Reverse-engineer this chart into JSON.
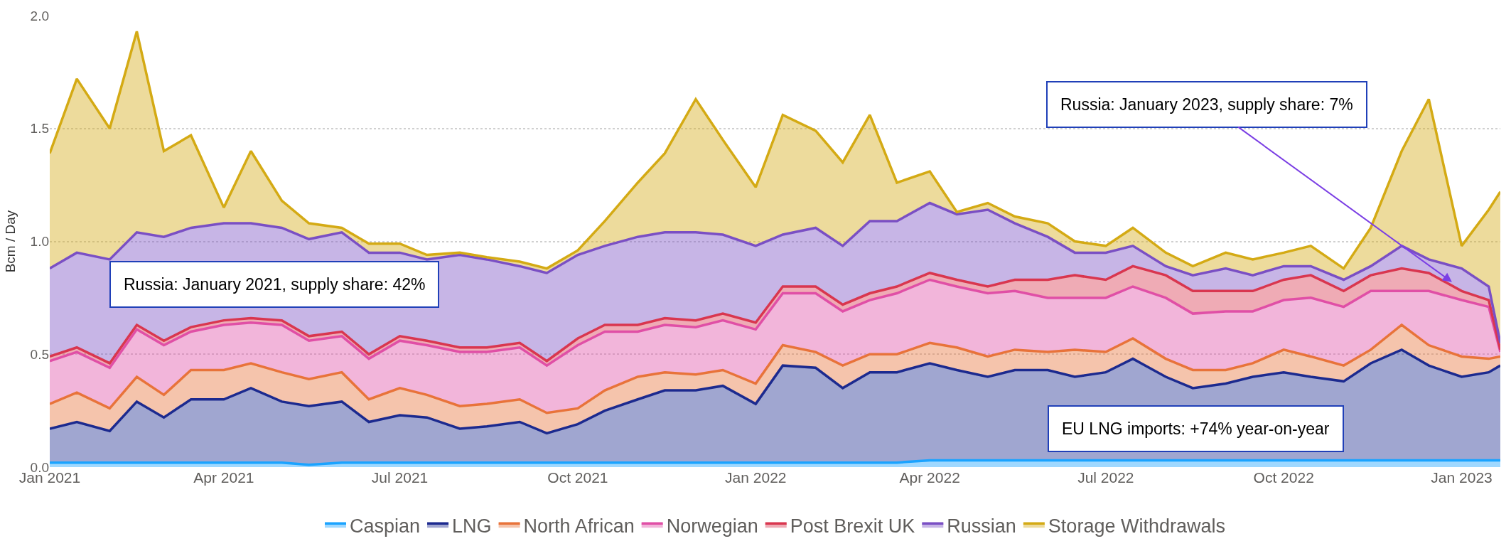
{
  "chart_data": {
    "type": "area",
    "stacked": true,
    "ylabel": "Bcm / Day",
    "x": [
      "2021-01-01",
      "2021-01-15",
      "2021-02-01",
      "2021-02-15",
      "2021-03-01",
      "2021-03-15",
      "2021-04-01",
      "2021-04-15",
      "2021-05-01",
      "2021-05-15",
      "2021-06-01",
      "2021-06-15",
      "2021-07-01",
      "2021-07-15",
      "2021-08-01",
      "2021-08-15",
      "2021-09-01",
      "2021-09-15",
      "2021-10-01",
      "2021-10-15",
      "2021-11-01",
      "2021-11-15",
      "2021-12-01",
      "2021-12-15",
      "2022-01-01",
      "2022-01-15",
      "2022-02-01",
      "2022-02-15",
      "2022-03-01",
      "2022-03-15",
      "2022-04-01",
      "2022-04-15",
      "2022-05-01",
      "2022-05-15",
      "2022-06-01",
      "2022-06-15",
      "2022-07-01",
      "2022-07-15",
      "2022-08-01",
      "2022-08-15",
      "2022-09-01",
      "2022-09-15",
      "2022-10-01",
      "2022-10-15",
      "2022-11-01",
      "2022-11-15",
      "2022-12-01",
      "2022-12-15",
      "2023-01-01",
      "2023-01-15",
      "2023-01-21"
    ],
    "series": [
      {
        "name": "Caspian",
        "color": "#1aa3ff",
        "values": [
          0.02,
          0.02,
          0.02,
          0.02,
          0.02,
          0.02,
          0.02,
          0.02,
          0.02,
          0.01,
          0.02,
          0.02,
          0.02,
          0.02,
          0.02,
          0.02,
          0.02,
          0.02,
          0.02,
          0.02,
          0.02,
          0.02,
          0.02,
          0.02,
          0.02,
          0.02,
          0.02,
          0.02,
          0.02,
          0.02,
          0.03,
          0.03,
          0.03,
          0.03,
          0.03,
          0.03,
          0.03,
          0.03,
          0.03,
          0.03,
          0.03,
          0.03,
          0.03,
          0.03,
          0.03,
          0.03,
          0.03,
          0.03,
          0.03,
          0.03,
          0.03
        ]
      },
      {
        "name": "LNG",
        "color": "#1c2a8f",
        "values": [
          0.15,
          0.18,
          0.14,
          0.27,
          0.2,
          0.28,
          0.28,
          0.33,
          0.27,
          0.26,
          0.27,
          0.18,
          0.21,
          0.2,
          0.15,
          0.16,
          0.18,
          0.13,
          0.17,
          0.23,
          0.28,
          0.32,
          0.32,
          0.34,
          0.26,
          0.43,
          0.42,
          0.33,
          0.4,
          0.4,
          0.43,
          0.4,
          0.37,
          0.4,
          0.4,
          0.37,
          0.39,
          0.45,
          0.37,
          0.32,
          0.34,
          0.37,
          0.39,
          0.37,
          0.35,
          0.43,
          0.49,
          0.42,
          0.37,
          0.39,
          0.42
        ]
      },
      {
        "name": "North African",
        "color": "#e8733a",
        "values": [
          0.11,
          0.13,
          0.1,
          0.11,
          0.1,
          0.13,
          0.13,
          0.11,
          0.13,
          0.12,
          0.13,
          0.1,
          0.12,
          0.1,
          0.1,
          0.1,
          0.1,
          0.09,
          0.07,
          0.09,
          0.1,
          0.08,
          0.07,
          0.07,
          0.09,
          0.09,
          0.07,
          0.1,
          0.08,
          0.08,
          0.09,
          0.1,
          0.09,
          0.09,
          0.08,
          0.12,
          0.09,
          0.09,
          0.08,
          0.08,
          0.06,
          0.06,
          0.1,
          0.09,
          0.07,
          0.06,
          0.11,
          0.09,
          0.09,
          0.06,
          0.04
        ]
      },
      {
        "name": "Norwegian",
        "color": "#e04fa6",
        "values": [
          0.19,
          0.18,
          0.18,
          0.21,
          0.22,
          0.17,
          0.2,
          0.18,
          0.21,
          0.17,
          0.16,
          0.18,
          0.21,
          0.22,
          0.24,
          0.23,
          0.23,
          0.21,
          0.28,
          0.26,
          0.2,
          0.21,
          0.21,
          0.22,
          0.24,
          0.23,
          0.26,
          0.24,
          0.24,
          0.27,
          0.28,
          0.27,
          0.28,
          0.26,
          0.24,
          0.23,
          0.24,
          0.23,
          0.27,
          0.25,
          0.26,
          0.23,
          0.22,
          0.26,
          0.26,
          0.26,
          0.15,
          0.24,
          0.25,
          0.23,
          0.02
        ]
      },
      {
        "name": "Post Brexit UK",
        "color": "#d9364f",
        "values": [
          0.02,
          0.02,
          0.02,
          0.02,
          0.02,
          0.02,
          0.02,
          0.02,
          0.02,
          0.02,
          0.02,
          0.02,
          0.02,
          0.02,
          0.02,
          0.02,
          0.02,
          0.02,
          0.03,
          0.03,
          0.03,
          0.03,
          0.03,
          0.03,
          0.03,
          0.03,
          0.03,
          0.03,
          0.03,
          0.03,
          0.03,
          0.03,
          0.03,
          0.05,
          0.08,
          0.1,
          0.08,
          0.09,
          0.1,
          0.1,
          0.09,
          0.09,
          0.09,
          0.1,
          0.07,
          0.07,
          0.1,
          0.08,
          0.04,
          0.03,
          0.01
        ]
      },
      {
        "name": "Russian",
        "color": "#7a4fc4",
        "values": [
          0.39,
          0.42,
          0.46,
          0.41,
          0.46,
          0.44,
          0.43,
          0.42,
          0.41,
          0.43,
          0.44,
          0.45,
          0.37,
          0.36,
          0.41,
          0.39,
          0.34,
          0.39,
          0.37,
          0.35,
          0.39,
          0.38,
          0.39,
          0.35,
          0.34,
          0.23,
          0.26,
          0.26,
          0.32,
          0.29,
          0.31,
          0.29,
          0.34,
          0.25,
          0.19,
          0.1,
          0.12,
          0.09,
          0.04,
          0.07,
          0.1,
          0.07,
          0.06,
          0.04,
          0.05,
          0.04,
          0.1,
          0.06,
          0.1,
          0.06,
          0.03
        ]
      },
      {
        "name": "Storage Withdrawals",
        "color": "#d4aa14",
        "values": [
          0.51,
          0.77,
          0.58,
          0.89,
          0.38,
          0.41,
          0.07,
          0.32,
          0.12,
          0.07,
          0.02,
          0.04,
          0.04,
          0.02,
          0.01,
          0.01,
          0.02,
          0.02,
          0.02,
          0.11,
          0.24,
          0.35,
          0.59,
          0.42,
          0.26,
          0.53,
          0.43,
          0.37,
          0.47,
          0.17,
          0.14,
          0.01,
          0.03,
          0.03,
          0.06,
          0.05,
          0.03,
          0.08,
          0.06,
          0.04,
          0.07,
          0.07,
          0.06,
          0.09,
          0.05,
          0.17,
          0.42,
          0.71,
          0.1,
          0.34,
          0.67
        ]
      }
    ],
    "xlim": [
      "2021-01-01",
      "2023-01-21"
    ],
    "xticks": [
      {
        "value": "2021-01-01",
        "label": "Jan 2021"
      },
      {
        "value": "2021-04-01",
        "label": "Apr 2021"
      },
      {
        "value": "2021-07-01",
        "label": "Jul 2021"
      },
      {
        "value": "2021-10-01",
        "label": "Oct 2021"
      },
      {
        "value": "2022-01-01",
        "label": "Jan 2022"
      },
      {
        "value": "2022-04-01",
        "label": "Apr 2022"
      },
      {
        "value": "2022-07-01",
        "label": "Jul 2022"
      },
      {
        "value": "2022-10-01",
        "label": "Oct 2022"
      },
      {
        "value": "2023-01-01",
        "label": "Jan 2023"
      }
    ],
    "ylim": [
      0,
      2
    ],
    "yticks": [
      {
        "value": 0,
        "label": "0.0"
      },
      {
        "value": 0.5,
        "label": "0.5"
      },
      {
        "value": 1,
        "label": "1.0"
      },
      {
        "value": 1.5,
        "label": "1.5"
      },
      {
        "value": 2,
        "label": "2.0"
      }
    ],
    "grid": "y",
    "legend": "bottom",
    "marker": "none",
    "line_style": "solid",
    "annotations": [
      "Russia: January 2021, supply share: 42%",
      {
        "text": "Russia: January 2023, supply share: 7%",
        "x": "2022-12-27",
        "y": 0.82
      },
      "EU LNG imports: +74% year-on-year"
    ]
  }
}
